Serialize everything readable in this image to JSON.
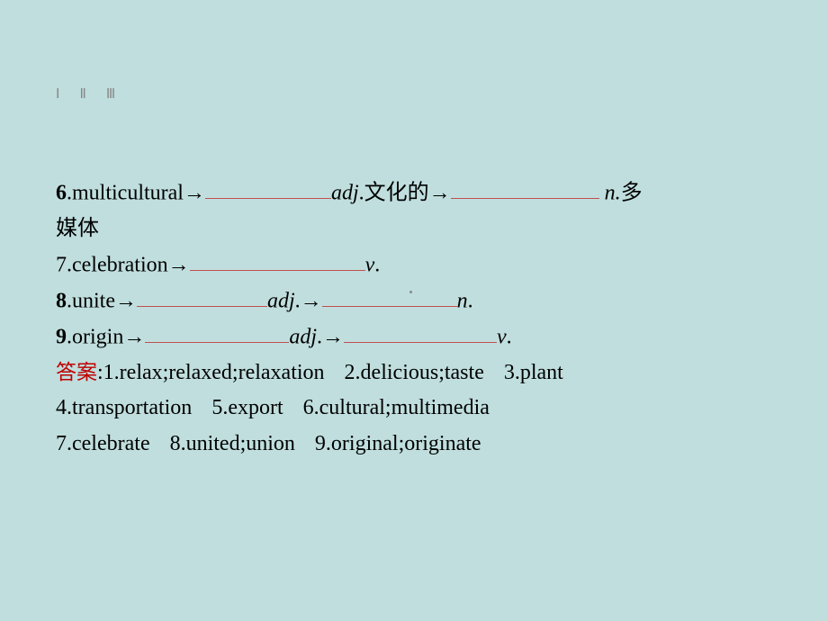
{
  "tabs": {
    "t1": "Ⅰ",
    "t2": "Ⅱ",
    "t3": "Ⅲ"
  },
  "items": {
    "i6": {
      "num": "6",
      "word": "multicultural",
      "pos1": "adj",
      "def1": "文化的",
      "pos2": "n",
      "def2": "多媒体"
    },
    "i7": {
      "num": "7",
      "word": "celebration",
      "pos1": "v",
      "punct": "."
    },
    "i8": {
      "num": "8",
      "word": "unite",
      "pos1": "adj",
      "pos2": "n",
      "punct": "."
    },
    "i9": {
      "num": "9",
      "word": "origin",
      "pos1": "adj",
      "pos2": "v",
      "punct": "."
    }
  },
  "answer": {
    "label": "答案",
    "colon": ":",
    "a1": "1.relax;relaxed;relaxation",
    "a2": "2.delicious;taste",
    "a3": "3.plant",
    "a4": "4.transportation",
    "a5": "5.export",
    "a6": "6.cultural;multimedia",
    "a7": "7.celebrate",
    "a8": "8.united;union",
    "a9": "9.original;originate"
  }
}
